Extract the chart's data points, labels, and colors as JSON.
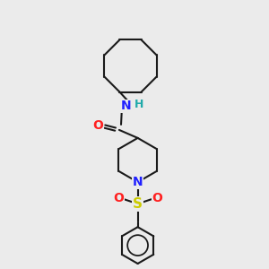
{
  "background_color": "#ebebeb",
  "bond_color": "#1a1a1a",
  "bond_width": 1.5,
  "N_color": "#2020ff",
  "O_color": "#ff2020",
  "S_color": "#cccc00",
  "H_color": "#20aaaa",
  "font_size": 9,
  "figsize": [
    3.0,
    3.0
  ],
  "dpi": 100,
  "xlim": [
    0,
    10
  ],
  "ylim": [
    0,
    10
  ]
}
